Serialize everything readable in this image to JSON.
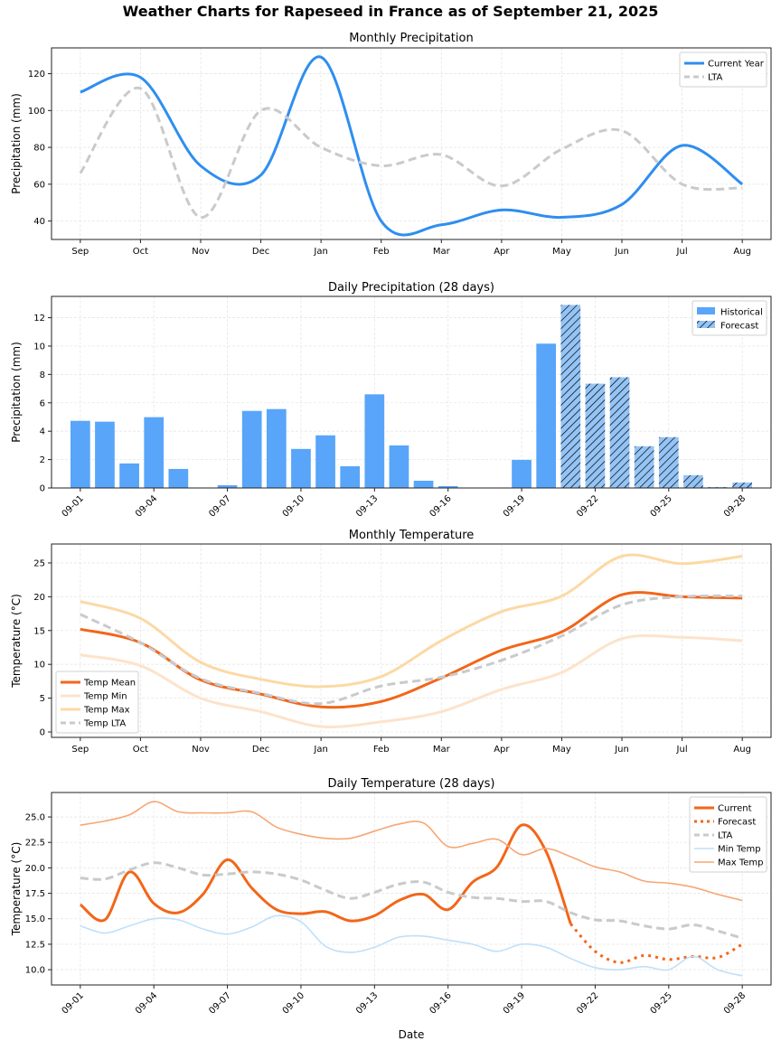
{
  "suptitle": "Weather Charts for Rapeseed in France as of September 21, 2025",
  "colors": {
    "precip_current": "#2e8ef0",
    "lta": "#c8cacc",
    "bar_hist": "#58a5fa",
    "bar_fcst": "#94c4f6",
    "temp_mean": "#f26619",
    "temp_min": "#fde3cc",
    "temp_max": "#fcd9a4",
    "daily_min": "#bfe0fb",
    "daily_max": "#f7a674"
  },
  "chart_data": [
    {
      "id": "monthly-precip",
      "type": "line",
      "title": "Monthly Precipitation",
      "xlabel": "",
      "ylabel": "Precipitation (mm)",
      "categories": [
        "Sep",
        "Oct",
        "Nov",
        "Dec",
        "Jan",
        "Feb",
        "Mar",
        "Apr",
        "May",
        "Jun",
        "Jul",
        "Aug"
      ],
      "yticks": [
        40,
        60,
        80,
        100,
        120
      ],
      "ylim": [
        30,
        134
      ],
      "grid": true,
      "legend": "top-right",
      "series": [
        {
          "name": "Current Year",
          "style": "solid",
          "color_key": "precip_current",
          "values": [
            110,
            118,
            70,
            65,
            129,
            40,
            38,
            46,
            42,
            49,
            81,
            60
          ]
        },
        {
          "name": "LTA",
          "style": "dashed",
          "color_key": "lta",
          "values": [
            66,
            112,
            42,
            100,
            80,
            70,
            76,
            59,
            79,
            89,
            60,
            58
          ]
        }
      ]
    },
    {
      "id": "daily-precip",
      "type": "bar",
      "title": "Daily Precipitation (28 days)",
      "xlabel": "",
      "ylabel": "Precipitation (mm)",
      "categories": [
        "09-01",
        "09-02",
        "09-03",
        "09-04",
        "09-05",
        "09-06",
        "09-07",
        "09-08",
        "09-09",
        "09-10",
        "09-11",
        "09-12",
        "09-13",
        "09-14",
        "09-15",
        "09-16",
        "09-17",
        "09-18",
        "09-19",
        "09-20",
        "09-21",
        "09-22",
        "09-23",
        "09-24",
        "09-25",
        "09-26",
        "09-27",
        "09-28"
      ],
      "xticks": [
        "09-01",
        "09-04",
        "09-07",
        "09-10",
        "09-13",
        "09-16",
        "09-19",
        "09-22",
        "09-25",
        "09-28"
      ],
      "yticks": [
        0,
        2,
        4,
        6,
        8,
        10,
        12
      ],
      "ylim": [
        0,
        13.5
      ],
      "grid": true,
      "legend": "top-right",
      "forecast_start_index": 20,
      "series": [
        {
          "name": "Historical",
          "values": [
            4.73,
            4.67,
            1.73,
            4.99,
            1.34,
            0,
            0.19,
            5.43,
            5.56,
            2.75,
            3.71,
            1.53,
            6.6,
            3.0,
            0.51,
            0.13,
            0,
            0,
            1.98,
            10.17,
            null,
            null,
            null,
            null,
            null,
            null,
            null,
            null
          ]
        },
        {
          "name": "Forecast",
          "values": [
            null,
            null,
            null,
            null,
            null,
            null,
            null,
            null,
            null,
            null,
            null,
            null,
            null,
            null,
            null,
            null,
            null,
            null,
            null,
            null,
            12.9,
            7.35,
            7.8,
            2.94,
            3.58,
            0.9,
            0.06,
            0.38
          ]
        }
      ]
    },
    {
      "id": "monthly-temp",
      "type": "line",
      "title": "Monthly Temperature",
      "xlabel": "",
      "ylabel": "Temperature (°C)",
      "categories": [
        "Sep",
        "Oct",
        "Nov",
        "Dec",
        "Jan",
        "Feb",
        "Mar",
        "Apr",
        "May",
        "Jun",
        "Jul",
        "Aug"
      ],
      "yticks": [
        0,
        5,
        10,
        15,
        20,
        25
      ],
      "ylim": [
        -0.8,
        27.8
      ],
      "grid": true,
      "legend": "lower-left",
      "series": [
        {
          "name": "Temp Mean",
          "style": "solid",
          "color_key": "temp_mean",
          "width": 3,
          "values": [
            15.2,
            13.2,
            7.7,
            5.6,
            3.7,
            4.5,
            8.0,
            12.1,
            14.8,
            20.3,
            20.0,
            19.8
          ]
        },
        {
          "name": "Temp Min",
          "style": "solid",
          "color_key": "temp_min",
          "width": 3,
          "values": [
            11.4,
            9.8,
            5.0,
            3.0,
            0.8,
            1.5,
            3.0,
            6.3,
            8.8,
            13.8,
            14.0,
            13.5
          ]
        },
        {
          "name": "Temp Max",
          "style": "solid",
          "color_key": "temp_max",
          "width": 3,
          "values": [
            19.3,
            16.8,
            10.3,
            7.8,
            6.7,
            8.2,
            13.5,
            17.8,
            20.1,
            26.0,
            24.9,
            26.0
          ]
        },
        {
          "name": "Temp LTA",
          "style": "dashed",
          "color_key": "lta",
          "width": 3,
          "values": [
            17.4,
            13.2,
            7.9,
            5.7,
            4.2,
            6.8,
            8.1,
            10.6,
            14.2,
            18.8,
            20.0,
            20.1
          ]
        }
      ]
    },
    {
      "id": "daily-temp",
      "type": "line",
      "title": "Daily Temperature (28 days)",
      "xlabel": "Date",
      "ylabel": "Temperature (°C)",
      "categories": [
        "09-01",
        "09-02",
        "09-03",
        "09-04",
        "09-05",
        "09-06",
        "09-07",
        "09-08",
        "09-09",
        "09-10",
        "09-11",
        "09-12",
        "09-13",
        "09-14",
        "09-15",
        "09-16",
        "09-17",
        "09-18",
        "09-19",
        "09-20",
        "09-21",
        "09-22",
        "09-23",
        "09-24",
        "09-25",
        "09-26",
        "09-27",
        "09-28"
      ],
      "xticks": [
        "09-01",
        "09-04",
        "09-07",
        "09-10",
        "09-13",
        "09-16",
        "09-19",
        "09-22",
        "09-25",
        "09-28"
      ],
      "yticks": [
        10.0,
        12.5,
        15.0,
        17.5,
        20.0,
        22.5,
        25.0
      ],
      "ylim": [
        8.5,
        27.4
      ],
      "grid": true,
      "legend": "top-right",
      "series": [
        {
          "name": "Current",
          "style": "solid",
          "color_key": "temp_mean",
          "width": 3,
          "values": [
            16.4,
            14.9,
            19.6,
            16.5,
            15.6,
            17.4,
            20.8,
            18.0,
            15.9,
            15.5,
            15.7,
            14.8,
            15.3,
            16.8,
            17.4,
            15.9,
            18.6,
            20.1,
            24.2,
            21.6,
            14.5,
            null,
            null,
            null,
            null,
            null,
            null,
            null
          ]
        },
        {
          "name": "Forecast",
          "style": "dotted",
          "color_key": "temp_mean",
          "width": 3,
          "values": [
            null,
            null,
            null,
            null,
            null,
            null,
            null,
            null,
            null,
            null,
            null,
            null,
            null,
            null,
            null,
            null,
            null,
            null,
            null,
            null,
            14.5,
            11.8,
            10.7,
            11.4,
            11.0,
            11.3,
            11.2,
            12.5
          ]
        },
        {
          "name": "LTA",
          "style": "dashed",
          "color_key": "lta",
          "width": 3,
          "values": [
            19.0,
            18.9,
            19.8,
            20.5,
            20.0,
            19.3,
            19.4,
            19.6,
            19.4,
            18.8,
            17.8,
            17.0,
            17.6,
            18.4,
            18.6,
            17.6,
            17.1,
            17.0,
            16.7,
            16.7,
            15.6,
            14.9,
            14.8,
            14.3,
            14.0,
            14.4,
            13.8,
            13.1
          ]
        },
        {
          "name": "Min Temp",
          "style": "solid",
          "color_key": "daily_min",
          "width": 1.6,
          "values": [
            14.3,
            13.6,
            14.3,
            15.0,
            14.9,
            14.0,
            13.5,
            14.2,
            15.3,
            14.7,
            12.3,
            11.7,
            12.2,
            13.2,
            13.3,
            12.9,
            12.5,
            11.8,
            12.5,
            12.2,
            11.1,
            10.2,
            10.0,
            10.3,
            10.0,
            11.3,
            10.0,
            9.4
          ]
        },
        {
          "name": "Max Temp",
          "style": "solid",
          "color_key": "daily_max",
          "width": 1.6,
          "values": [
            24.2,
            24.6,
            25.2,
            26.5,
            25.5,
            25.4,
            25.4,
            25.5,
            24.0,
            23.3,
            22.9,
            22.9,
            23.6,
            24.3,
            24.4,
            22.1,
            22.4,
            22.8,
            21.3,
            21.9,
            21.1,
            20.1,
            19.6,
            18.7,
            18.5,
            18.1,
            17.4,
            16.8
          ]
        }
      ]
    }
  ]
}
